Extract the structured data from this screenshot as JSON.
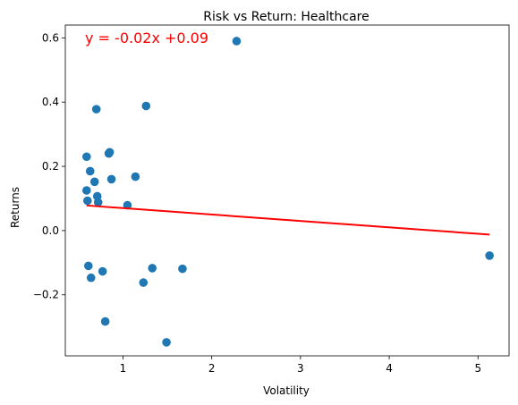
{
  "chart_data": {
    "type": "scatter",
    "title": "Risk vs Return: Healthcare",
    "xlabel": "Volatility",
    "ylabel": "Returns",
    "xlim": [
      0.35,
      5.35
    ],
    "ylim": [
      -0.39,
      0.64
    ],
    "xticks": [
      1,
      2,
      3,
      4,
      5
    ],
    "xtick_labels": [
      "1",
      "2",
      "3",
      "4",
      "5"
    ],
    "yticks": [
      -0.2,
      0.0,
      0.2,
      0.4,
      0.6
    ],
    "ytick_labels": [
      "−0.2",
      "0.0",
      "0.2",
      "0.4",
      "0.6"
    ],
    "grid": false,
    "point_color": "#1f77b4",
    "points": [
      {
        "x": 0.59,
        "y": 0.23
      },
      {
        "x": 0.59,
        "y": 0.125
      },
      {
        "x": 0.6,
        "y": 0.093
      },
      {
        "x": 0.61,
        "y": -0.11
      },
      {
        "x": 0.63,
        "y": 0.185
      },
      {
        "x": 0.64,
        "y": -0.147
      },
      {
        "x": 0.68,
        "y": 0.152
      },
      {
        "x": 0.7,
        "y": 0.378
      },
      {
        "x": 0.71,
        "y": 0.107
      },
      {
        "x": 0.72,
        "y": 0.088
      },
      {
        "x": 0.77,
        "y": -0.127
      },
      {
        "x": 0.8,
        "y": -0.283
      },
      {
        "x": 0.84,
        "y": 0.24
      },
      {
        "x": 0.85,
        "y": 0.244
      },
      {
        "x": 0.87,
        "y": 0.16
      },
      {
        "x": 1.05,
        "y": 0.079
      },
      {
        "x": 1.14,
        "y": 0.168
      },
      {
        "x": 1.23,
        "y": -0.162
      },
      {
        "x": 1.26,
        "y": 0.388
      },
      {
        "x": 1.33,
        "y": -0.117
      },
      {
        "x": 1.49,
        "y": -0.348
      },
      {
        "x": 1.67,
        "y": -0.119
      },
      {
        "x": 2.28,
        "y": 0.59
      },
      {
        "x": 5.13,
        "y": -0.078
      }
    ],
    "regression": {
      "slope": -0.02,
      "intercept": 0.09,
      "x_start": 0.59,
      "x_end": 5.13,
      "color": "#ff0000",
      "equation": "y = -0.02x +0.09"
    }
  }
}
